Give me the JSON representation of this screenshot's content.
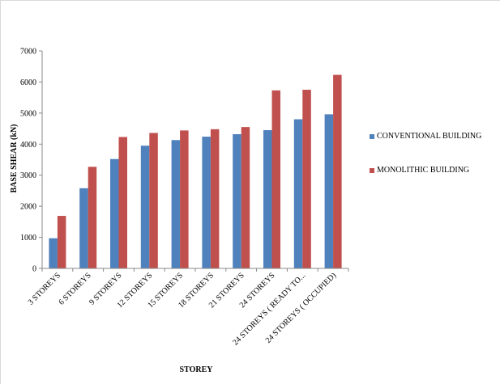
{
  "chart_data": {
    "type": "bar",
    "title": "",
    "xlabel": "STOREY",
    "ylabel": "BASE SHEAR (kN)",
    "ylim": [
      0,
      7000
    ],
    "yticks": [
      0,
      1000,
      2000,
      3000,
      4000,
      5000,
      6000,
      7000
    ],
    "grid": false,
    "legend_position": "right",
    "categories": [
      "3 STOREYS",
      "6 STOREYS",
      "9 STOREYS",
      "12 STOREYS",
      "15 STOREYS",
      "18 STOREYS",
      "21 STOREYS",
      "24 STOREYS",
      "24 STOREYS ( READY TO...",
      "24 STOREYS ( OCCUPIED)"
    ],
    "series": [
      {
        "name": "CONVENTIONAL BUILDING",
        "color": "#4f81bd",
        "values": [
          970,
          2580,
          3520,
          3950,
          4130,
          4240,
          4320,
          4450,
          4800,
          4960
        ]
      },
      {
        "name": "MONOLITHIC BUILDING",
        "color": "#c0504d",
        "values": [
          1690,
          3270,
          4230,
          4360,
          4440,
          4480,
          4550,
          5730,
          5750,
          6230
        ]
      }
    ]
  }
}
